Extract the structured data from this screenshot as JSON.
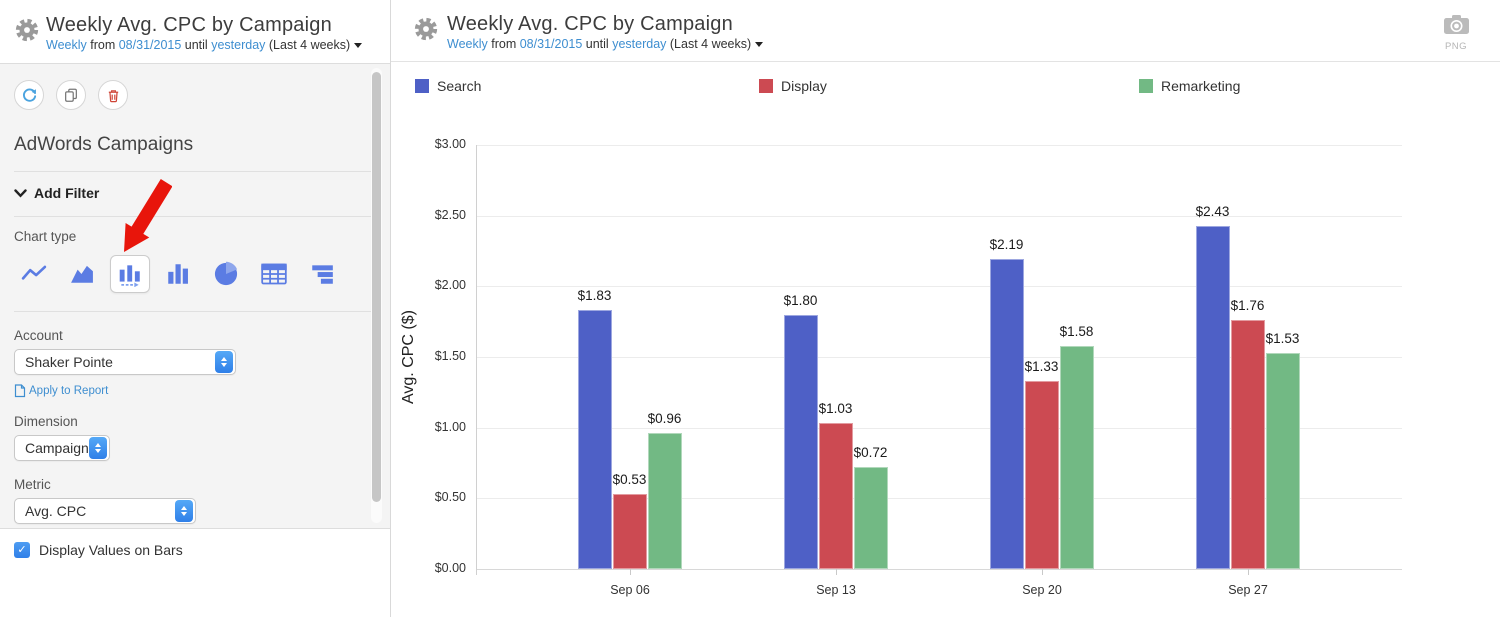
{
  "date_range": {
    "weekly": "Weekly",
    "from": "from",
    "date": "08/31/2015",
    "until": "until",
    "yesterday": "yesterday",
    "range": "(Last 4 weeks)"
  },
  "sidebar": {
    "title": "Weekly Avg. CPC by Campaign",
    "section_title": "AdWords Campaigns",
    "add_filter_label": "Add Filter",
    "chart_type_label": "Chart type",
    "selected_chart_type": "grouped-bar",
    "account_label": "Account",
    "account_value": "Shaker Pointe",
    "apply_to_report_label": "Apply to Report",
    "dimension_label": "Dimension",
    "dimension_value": "Campaign",
    "metric_label": "Metric",
    "metric_value": "Avg. CPC",
    "display_values_label": "Display Values on Bars",
    "display_values_checked": true
  },
  "main": {
    "title": "Weekly Avg. CPC by Campaign",
    "export_format": "PNG"
  },
  "chart_data": {
    "type": "bar",
    "title": "Weekly Avg. CPC by Campaign",
    "categories": [
      "Sep 06",
      "Sep 13",
      "Sep 20",
      "Sep 27"
    ],
    "series": [
      {
        "name": "Search",
        "color": "#4e60c6",
        "values": [
          1.83,
          1.8,
          2.19,
          2.43
        ]
      },
      {
        "name": "Display",
        "color": "#cc4a52",
        "values": [
          0.53,
          1.03,
          1.33,
          1.76
        ]
      },
      {
        "name": "Remarketing",
        "color": "#72b984",
        "values": [
          0.96,
          0.72,
          1.58,
          1.53
        ]
      }
    ],
    "xlabel": "",
    "ylabel": "Avg. CPC ($)",
    "ylim": [
      0,
      3
    ],
    "ytick_step": 0.5,
    "value_prefix": "$",
    "value_labels": true,
    "grid": true,
    "legend_position": "top"
  }
}
